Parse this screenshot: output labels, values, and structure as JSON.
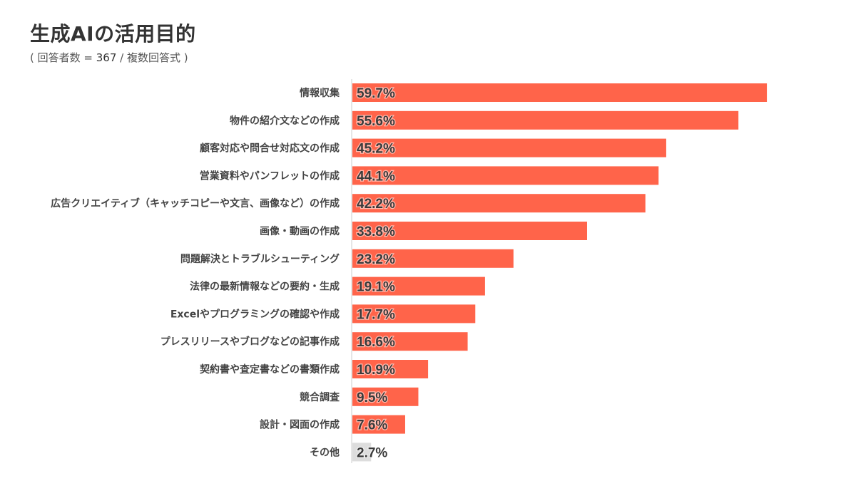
{
  "header": {
    "title": "生成AIの活用目的",
    "subtitle_open": "( 回答者数 = ",
    "respondents": "367",
    "subtitle_close": " / 複数回答式 )"
  },
  "colors": {
    "bar": "#ff644a",
    "bar_other": "#dddddd",
    "axis": "#cccccc"
  },
  "chart_data": {
    "type": "bar",
    "orientation": "horizontal",
    "title": "生成AIの活用目的",
    "subtitle": "( 回答者数 = 367 / 複数回答式 )",
    "unit": "%",
    "xlim": [
      0,
      60
    ],
    "categories": [
      "情報収集",
      "物件の紹介文などの作成",
      "顧客対応や問合せ対応文の作成",
      "営業資料やパンフレットの作成",
      "広告クリエイティブ（キャッチコピーや文言、画像など）の作成",
      "画像・動画の作成",
      "問題解決とトラブルシューティング",
      "法律の最新情報などの要約・生成",
      "Excelやプログラミングの確認や作成",
      "プレスリリースやブログなどの記事作成",
      "契約書や査定書などの書類作成",
      "競合調査",
      "設計・図面の作成",
      "その他"
    ],
    "values": [
      59.7,
      55.6,
      45.2,
      44.1,
      42.2,
      33.8,
      23.2,
      19.1,
      17.7,
      16.6,
      10.9,
      9.5,
      7.6,
      2.7
    ],
    "labels": [
      "59.7%",
      "55.6%",
      "45.2%",
      "44.1%",
      "42.2%",
      "33.8%",
      "23.2%",
      "19.1%",
      "17.7%",
      "16.6%",
      "10.9%",
      "9.5%",
      "7.6%",
      "2.7%"
    ],
    "highlight": [
      true,
      true,
      true,
      true,
      true,
      true,
      true,
      true,
      true,
      true,
      true,
      true,
      true,
      false
    ]
  }
}
